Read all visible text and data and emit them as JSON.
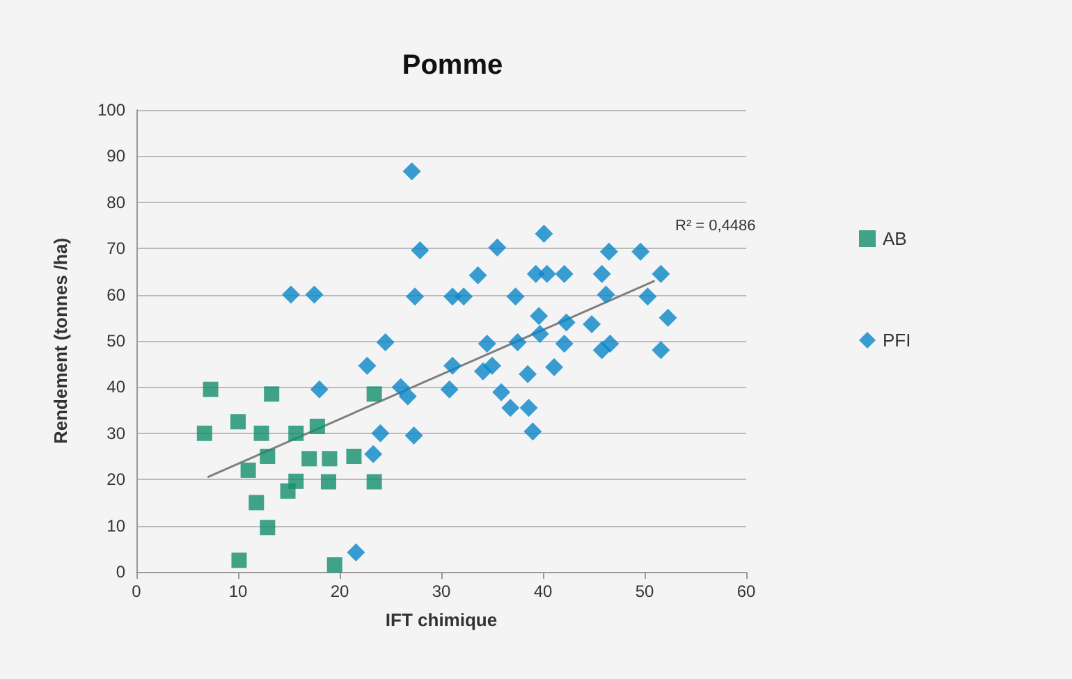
{
  "chart_data": {
    "type": "scatter",
    "title": "Pomme",
    "xlabel": "IFT chimique",
    "ylabel": "Rendement (tonnes /ha)",
    "xlim": [
      0,
      60
    ],
    "xticks": [
      0,
      10,
      20,
      30,
      40,
      50,
      60
    ],
    "ylim": [
      0,
      100
    ],
    "yticks": [
      0,
      10,
      20,
      30,
      40,
      50,
      60,
      70,
      80,
      90,
      100
    ],
    "grid": "y",
    "legend": "right",
    "annotations": [
      "R² = 0,4486"
    ],
    "series": [
      {
        "name": "AB",
        "color": "#138f6c",
        "marker": "square",
        "x": [
          6.7,
          7.3,
          10,
          10.1,
          11,
          11.8,
          12.3,
          12.9,
          12.9,
          13.3,
          14.9,
          15.7,
          15.7,
          17,
          17.8,
          19,
          18.9,
          19.5,
          21.4,
          23.4,
          23.4
        ],
        "values": [
          30,
          39.5,
          32.5,
          2.5,
          22,
          15,
          30,
          25,
          9.6,
          38.5,
          17.5,
          19.6,
          30,
          24.5,
          31.5,
          24.5,
          19.5,
          1.5,
          25,
          38.5,
          19.5
        ]
      },
      {
        "name": "PFI",
        "color": "#0a86c8",
        "marker": "diamond",
        "x": [
          27.1,
          27.9,
          27.4,
          15.2,
          17.5,
          18,
          22.7,
          24.5,
          26,
          26.7,
          27.3,
          24,
          23.3,
          21.6,
          35.5,
          33.6,
          31.1,
          32.2,
          37.3,
          40.1,
          39.3,
          40.4,
          42.1,
          46.5,
          49.6,
          51.6,
          45.8,
          46.2,
          50.3,
          52.3,
          51.6,
          46.6,
          45.8,
          44.8,
          39.6,
          39.7,
          42.3,
          42.1,
          41.1,
          38.5,
          37.5,
          34.5,
          34.1,
          35,
          35.9,
          36.8,
          38.6,
          39,
          31.1,
          30.8
        ],
        "values": [
          86.7,
          69.6,
          59.6,
          60,
          60,
          39.5,
          44.6,
          49.7,
          40,
          38,
          29.5,
          30,
          25.5,
          4.2,
          70.2,
          64.2,
          59.6,
          59.6,
          59.6,
          73.2,
          64.5,
          64.5,
          64.5,
          69.3,
          69.3,
          64.5,
          64.5,
          60,
          59.6,
          55,
          48,
          49.4,
          48,
          53.6,
          55.4,
          51.5,
          54,
          49.4,
          44.3,
          42.8,
          49.7,
          49.4,
          43.4,
          44.6,
          38.9,
          35.5,
          35.5,
          30.4,
          44.6,
          39.5
        ]
      },
      {
        "type": "line",
        "color": "#7f7f7f",
        "marker": "none",
        "x": [
          7,
          51
        ],
        "values": [
          20.5,
          63
        ]
      }
    ]
  }
}
